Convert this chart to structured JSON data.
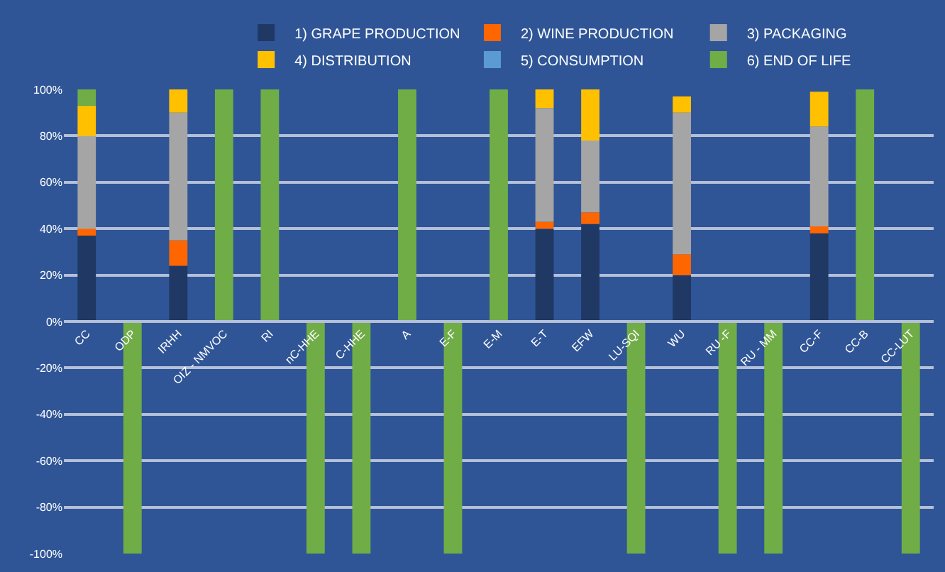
{
  "chart_data": {
    "type": "bar",
    "stacked": true,
    "categories": [
      "CC",
      "ODP",
      "IRHH",
      "OIZ - NMVOC",
      "RI",
      "nC-HHE",
      "C-HHE",
      "A",
      "E-F",
      "E-M",
      "E-T",
      "EFW",
      "LU-SQI",
      "WU",
      "RU -F",
      "RU - MM",
      "CC-F",
      "CC-B",
      "CC-LUT"
    ],
    "series": [
      {
        "name": "1) GRAPE PRODUCTION",
        "color": "#1f3864",
        "values": [
          37,
          null,
          24,
          null,
          null,
          null,
          null,
          null,
          null,
          null,
          40,
          42,
          null,
          20,
          null,
          null,
          38,
          null,
          null
        ]
      },
      {
        "name": "2) WINE PRODUCTION",
        "color": "#ff6600",
        "values": [
          3,
          null,
          11,
          null,
          null,
          null,
          null,
          null,
          null,
          null,
          3,
          5,
          null,
          9,
          null,
          null,
          3,
          null,
          null
        ]
      },
      {
        "name": "3) PACKAGING",
        "color": "#a5a5a5",
        "values": [
          40,
          null,
          55,
          null,
          null,
          null,
          null,
          null,
          null,
          null,
          49,
          31,
          null,
          61,
          null,
          null,
          43,
          null,
          null
        ]
      },
      {
        "name": "4) DISTRIBUTION",
        "color": "#ffc000",
        "values": [
          13,
          null,
          10,
          null,
          null,
          null,
          null,
          null,
          null,
          null,
          8,
          22,
          null,
          7,
          null,
          null,
          15,
          null,
          null
        ]
      },
      {
        "name": "5) CONSUMPTION",
        "color": "#5b9bd5",
        "values": [
          null,
          null,
          null,
          null,
          null,
          null,
          null,
          null,
          null,
          null,
          null,
          null,
          null,
          null,
          null,
          null,
          null,
          null,
          null
        ]
      },
      {
        "name": "6) END OF LIFE",
        "color": "#70ad47",
        "values": [
          7,
          -100,
          null,
          100,
          100,
          -100,
          -100,
          100,
          -100,
          100,
          null,
          null,
          -100,
          null,
          -100,
          -100,
          null,
          100,
          -100
        ]
      }
    ],
    "ylim": [
      -100,
      100
    ],
    "yticks": [
      {
        "value": -100,
        "label": "-100%"
      },
      {
        "value": -80,
        "label": "-80%"
      },
      {
        "value": -60,
        "label": "-60%"
      },
      {
        "value": -40,
        "label": "-40%"
      },
      {
        "value": -20,
        "label": "-20%"
      },
      {
        "value": 0,
        "label": "0%"
      },
      {
        "value": 20,
        "label": "20%"
      },
      {
        "value": 40,
        "label": "40%"
      },
      {
        "value": 60,
        "label": "60%"
      },
      {
        "value": 80,
        "label": "80%"
      },
      {
        "value": 100,
        "label": "100%"
      }
    ],
    "grid": "y",
    "legend": "top"
  }
}
